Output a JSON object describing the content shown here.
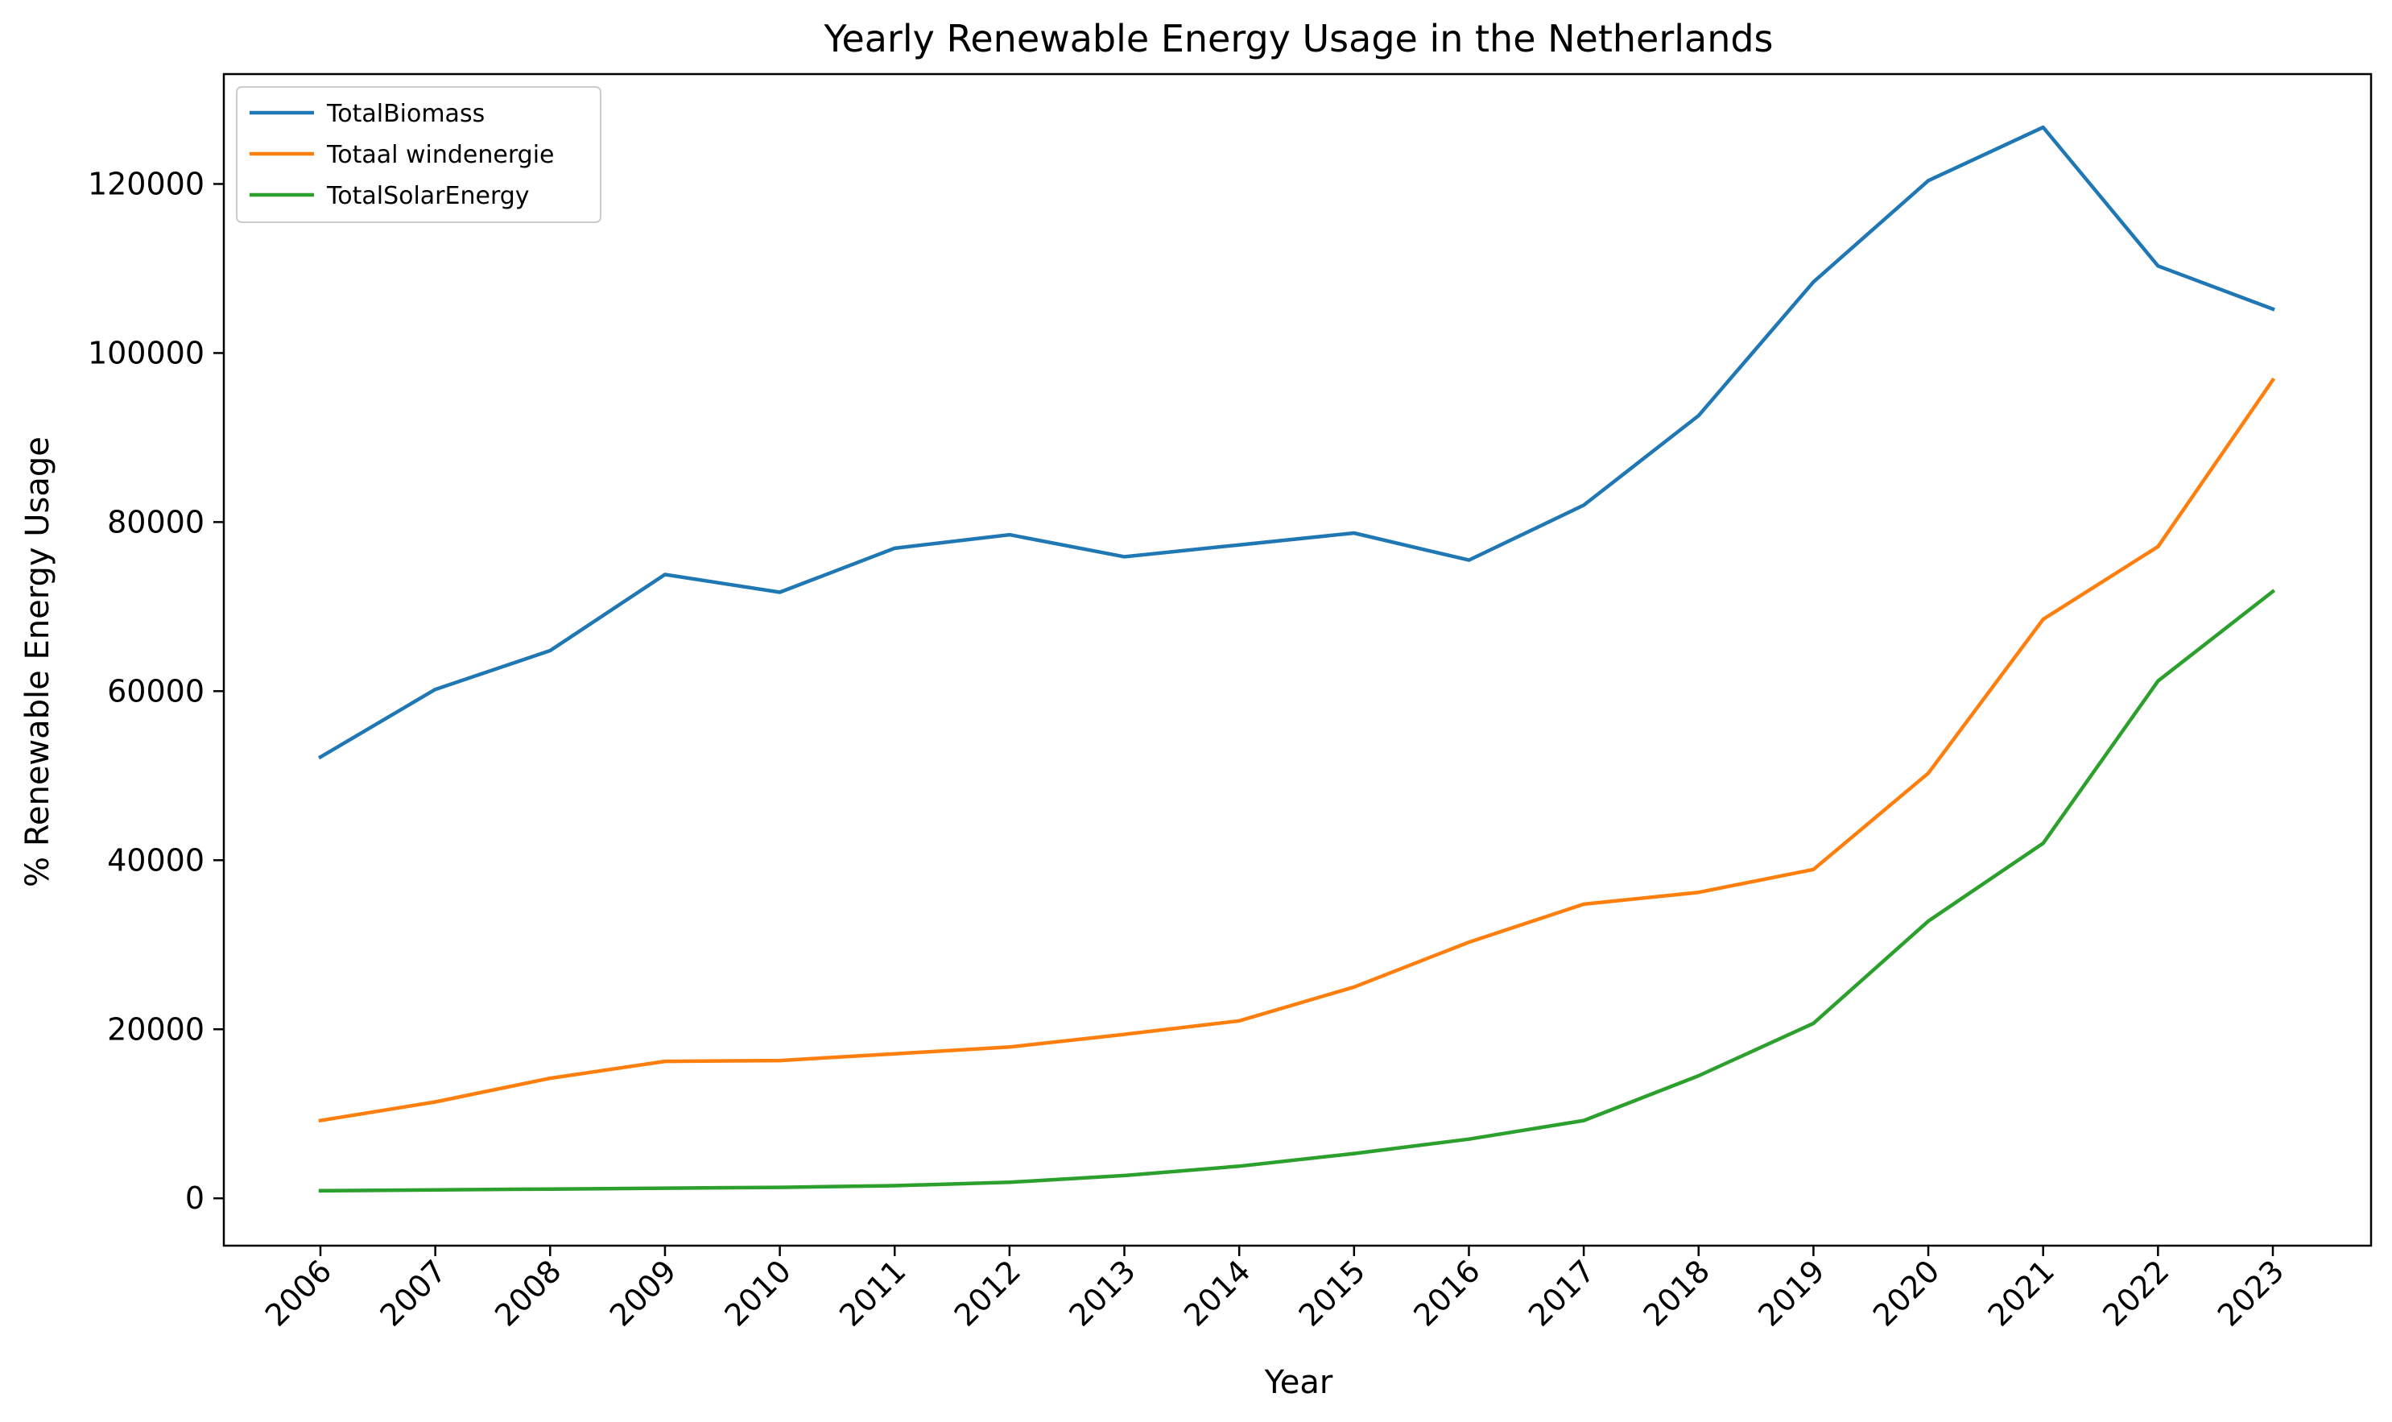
{
  "chart_data": {
    "type": "line",
    "title": "Yearly Renewable Energy Usage in the Netherlands",
    "xlabel": "Year",
    "ylabel": "% Renewable Energy Usage",
    "x": [
      "2006",
      "2007",
      "2008",
      "2009",
      "2010",
      "2011",
      "2012",
      "2013",
      "2014",
      "2015",
      "2016",
      "2017",
      "2018",
      "2019",
      "2020",
      "2021",
      "2022",
      "2023"
    ],
    "ylim": [
      -5600,
      133000
    ],
    "yticks": [
      0,
      20000,
      40000,
      60000,
      80000,
      100000,
      120000
    ],
    "ytick_labels": [
      "0",
      "20000",
      "40000",
      "60000",
      "80000",
      "100000",
      "120000"
    ],
    "grid": false,
    "legend_position": "top-left",
    "series": [
      {
        "name": "TotalBiomass",
        "color": "#1f77b4",
        "values": [
          52200,
          60200,
          64800,
          73800,
          71700,
          76900,
          78500,
          75900,
          77300,
          78700,
          75500,
          82000,
          92600,
          108400,
          120400,
          126700,
          110300,
          105200
        ]
      },
      {
        "name": "Totaal windenergie",
        "color": "#ff7f0e",
        "values": [
          9200,
          11400,
          14200,
          16200,
          16300,
          17100,
          17900,
          19400,
          21000,
          25000,
          30300,
          34800,
          36200,
          38900,
          50300,
          68500,
          77100,
          96800
        ]
      },
      {
        "name": "TotalSolarEnergy",
        "color": "#2ca02c",
        "values": [
          900,
          1000,
          1100,
          1200,
          1300,
          1500,
          1900,
          2700,
          3800,
          5300,
          7000,
          9200,
          14500,
          20700,
          32800,
          42000,
          61200,
          71800
        ]
      }
    ]
  }
}
